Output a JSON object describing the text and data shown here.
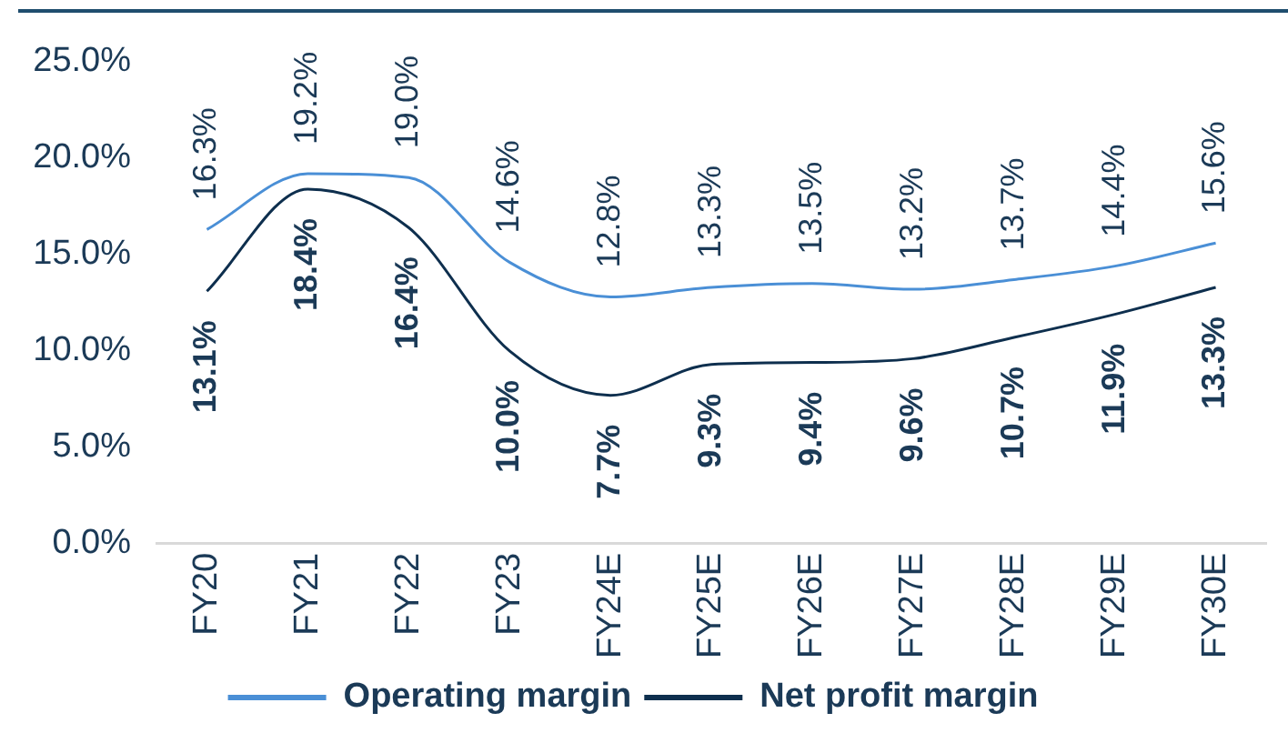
{
  "chart_data": {
    "type": "line",
    "categories": [
      "FY20",
      "FY21",
      "FY22",
      "FY23",
      "FY24E",
      "FY25E",
      "FY26E",
      "FY27E",
      "FY28E",
      "FY29E",
      "FY30E"
    ],
    "series": [
      {
        "name": "Operating margin",
        "color": "#4a8fd6",
        "values": [
          16.3,
          19.2,
          19.0,
          14.6,
          12.8,
          13.3,
          13.5,
          13.2,
          13.7,
          14.4,
          15.6
        ],
        "value_labels": [
          "16.3%",
          "19.2%",
          "19.0%",
          "14.6%",
          "12.8%",
          "13.3%",
          "13.5%",
          "13.2%",
          "13.7%",
          "14.4%",
          "15.6%"
        ]
      },
      {
        "name": "Net profit margin",
        "color": "#0e2f4e",
        "values": [
          13.1,
          18.4,
          16.4,
          10.0,
          7.7,
          9.3,
          9.4,
          9.6,
          10.7,
          11.9,
          13.3
        ],
        "value_labels": [
          "13.1%",
          "18.4%",
          "16.4%",
          "10.0%",
          "7.7%",
          "9.3%",
          "9.4%",
          "9.6%",
          "10.7%",
          "11.9%",
          "13.3%"
        ]
      }
    ],
    "ylim": [
      0,
      25
    ],
    "yticks": [
      {
        "value": 0,
        "label": "0.0%"
      },
      {
        "value": 5,
        "label": "5.0%"
      },
      {
        "value": 10,
        "label": "10.0%"
      },
      {
        "value": 15,
        "label": "15.0%"
      },
      {
        "value": 20,
        "label": "20.0%"
      },
      {
        "value": 25,
        "label": "25.0%"
      }
    ],
    "grid": false,
    "legend": "bottom",
    "marker": "none"
  }
}
